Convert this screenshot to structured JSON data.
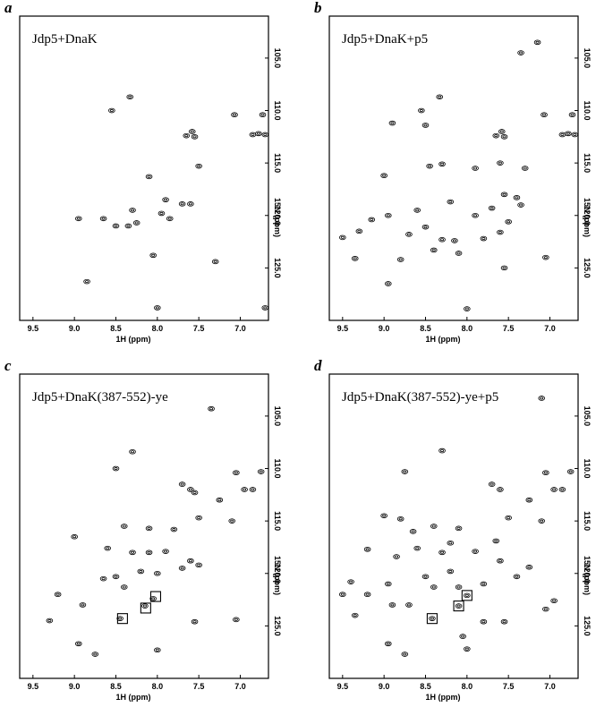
{
  "chart_data": [
    {
      "type": "scatter",
      "label": "a",
      "title": "Jdp5+DnaK",
      "x_label": "1H (ppm)",
      "y_label": "15N (ppm)",
      "xlim": [
        9.66,
        6.66
      ],
      "ylim": [
        101,
        130
      ],
      "xticks": [
        9.5,
        {
          "value": 9.0,
          "label": "9.0"
        },
        8.5,
        {
          "value": 8.0,
          "label": "8.0"
        },
        7.5,
        {
          "value": 7.0,
          "label": "7.0"
        }
      ],
      "yticks": [
        {
          "value": 105,
          "label": "105.0"
        },
        {
          "value": 110,
          "label": "110.0"
        },
        {
          "value": 115,
          "label": "115.0"
        },
        {
          "value": 120,
          "label": "120.0"
        },
        {
          "value": 125,
          "label": "125.0"
        }
      ],
      "x": [
        8.55,
        8.33,
        7.65,
        7.58,
        7.55,
        7.07,
        6.73,
        6.85,
        6.78,
        6.7,
        7.5,
        8.1,
        7.7,
        7.6,
        8.3,
        8.35,
        8.5,
        8.25,
        7.95,
        7.85,
        8.05,
        8.95,
        7.3,
        8.0,
        8.85,
        6.7,
        8.65,
        7.9
      ],
      "y": [
        110.0,
        108.7,
        112.4,
        112.0,
        112.5,
        110.4,
        110.4,
        112.3,
        112.2,
        112.3,
        115.3,
        116.3,
        118.9,
        118.9,
        119.5,
        121.0,
        121.0,
        120.7,
        119.8,
        120.3,
        123.8,
        120.3,
        124.4,
        128.8,
        126.3,
        128.8,
        120.3,
        118.5
      ]
    },
    {
      "type": "scatter",
      "label": "b",
      "title": "Jdp5+DnaK+p5",
      "x_label": "1H (ppm)",
      "y_label": "15N (ppm)",
      "xlim": [
        9.66,
        6.66
      ],
      "ylim": [
        101,
        130
      ],
      "xticks": [
        9.5,
        {
          "value": 9.0,
          "label": "9.0"
        },
        8.5,
        {
          "value": 8.0,
          "label": "8.0"
        },
        7.5,
        {
          "value": 7.0,
          "label": "7.0"
        }
      ],
      "yticks": [
        {
          "value": 105,
          "label": "105.0"
        },
        {
          "value": 110,
          "label": "110.0"
        },
        {
          "value": 115,
          "label": "115.0"
        },
        {
          "value": 120,
          "label": "120.0"
        },
        {
          "value": 125,
          "label": "125.0"
        }
      ],
      "x": [
        8.55,
        8.33,
        7.65,
        7.58,
        7.55,
        7.07,
        6.73,
        6.85,
        6.78,
        6.7,
        7.35,
        7.15,
        8.9,
        8.5,
        9.0,
        8.45,
        8.3,
        7.9,
        7.6,
        7.3,
        7.4,
        7.55,
        8.95,
        9.15,
        9.3,
        9.5,
        8.7,
        8.5,
        8.3,
        8.15,
        8.4,
        8.1,
        7.8,
        7.6,
        7.5,
        7.7,
        7.35,
        8.8,
        9.35,
        7.55,
        7.05,
        8.95,
        8.0,
        7.9,
        8.2,
        8.6
      ],
      "y": [
        110.0,
        108.7,
        112.4,
        112.0,
        112.5,
        110.4,
        110.4,
        112.3,
        112.2,
        112.3,
        104.5,
        103.5,
        111.2,
        111.4,
        116.2,
        115.3,
        115.1,
        115.5,
        115.0,
        115.5,
        118.3,
        118.0,
        120.0,
        120.4,
        121.5,
        122.1,
        121.8,
        121.1,
        122.3,
        122.4,
        123.3,
        123.6,
        122.2,
        121.6,
        120.6,
        119.3,
        119.0,
        124.2,
        124.1,
        125.0,
        124.0,
        126.5,
        128.9,
        120.0,
        118.7,
        119.5
      ]
    },
    {
      "type": "scatter",
      "label": "c",
      "title": "Jdp5+DnaK(387-552)-ye",
      "x_label": "1H (ppm)",
      "y_label": "15N (ppm)",
      "xlim": [
        9.66,
        6.66
      ],
      "ylim": [
        101,
        130
      ],
      "xticks": [
        9.5,
        {
          "value": 9.0,
          "label": "9.0"
        },
        8.5,
        {
          "value": 8.0,
          "label": "8.0"
        },
        7.5,
        {
          "value": 7.0,
          "label": "7.0"
        }
      ],
      "yticks": [
        {
          "value": 105,
          "label": "105.0"
        },
        {
          "value": 110,
          "label": "110.0"
        },
        {
          "value": 115,
          "label": "115.0"
        },
        {
          "value": 120,
          "label": "120.0"
        },
        {
          "value": 125,
          "label": "125.0"
        }
      ],
      "x": [
        7.35,
        8.3,
        8.5,
        7.7,
        7.6,
        7.55,
        7.05,
        6.75,
        6.95,
        6.85,
        7.25,
        7.1,
        7.5,
        8.4,
        8.1,
        7.8,
        9.0,
        8.6,
        8.3,
        8.1,
        7.9,
        7.6,
        7.5,
        7.7,
        8.5,
        8.0,
        8.2,
        8.4,
        8.05,
        8.15,
        8.45,
        9.2,
        8.9,
        9.3,
        7.55,
        7.05,
        8.95,
        8.0,
        8.75,
        8.65
      ],
      "y": [
        104.3,
        108.4,
        110.0,
        111.5,
        112.0,
        112.3,
        110.4,
        110.3,
        112.0,
        112.0,
        113.0,
        115.0,
        114.7,
        115.5,
        115.7,
        115.8,
        116.5,
        117.6,
        118.0,
        118.0,
        117.9,
        118.8,
        119.2,
        119.5,
        120.3,
        120.0,
        119.8,
        121.3,
        122.4,
        123.1,
        124.3,
        122.0,
        123.0,
        124.5,
        124.6,
        124.4,
        126.7,
        127.3,
        127.7,
        120.5
      ],
      "boxes": {
        "x": [
          8.02,
          8.14,
          8.42
        ],
        "y": [
          122.2,
          123.3,
          124.3
        ]
      }
    },
    {
      "type": "scatter",
      "label": "d",
      "title": "Jdp5+DnaK(387-552)-ye+p5",
      "x_label": "1H (ppm)",
      "y_label": "15N (ppm)",
      "xlim": [
        9.66,
        6.66
      ],
      "ylim": [
        101,
        130
      ],
      "xticks": [
        9.5,
        {
          "value": 9.0,
          "label": "9.0"
        },
        8.5,
        {
          "value": 8.0,
          "label": "8.0"
        },
        7.5,
        {
          "value": 7.0,
          "label": "7.0"
        }
      ],
      "yticks": [
        {
          "value": 105,
          "label": "105.0"
        },
        {
          "value": 110,
          "label": "110.0"
        },
        {
          "value": 115,
          "label": "115.0"
        },
        {
          "value": 120,
          "label": "120.0"
        },
        {
          "value": 125,
          "label": "125.0"
        }
      ],
      "x": [
        7.1,
        8.3,
        8.75,
        7.7,
        7.6,
        7.05,
        6.75,
        6.95,
        6.85,
        9.0,
        8.8,
        8.65,
        8.2,
        7.65,
        9.2,
        8.85,
        9.4,
        9.5,
        9.35,
        8.7,
        8.95,
        8.1,
        7.8,
        7.4,
        7.25,
        6.95,
        7.05,
        7.8,
        8.05,
        8.0,
        8.4,
        8.1,
        7.5,
        8.6,
        8.3,
        7.9,
        7.6,
        8.5,
        8.2,
        8.4,
        8.0,
        8.1,
        8.42,
        9.2,
        8.9,
        7.55,
        8.95,
        8.75,
        7.25,
        7.1
      ],
      "y": [
        103.3,
        108.3,
        110.3,
        111.5,
        112.0,
        110.4,
        110.3,
        112.0,
        112.0,
        114.5,
        114.8,
        116.0,
        117.1,
        116.9,
        117.7,
        118.4,
        120.8,
        122.0,
        124.0,
        123.0,
        121.0,
        121.3,
        121.0,
        120.3,
        119.4,
        122.6,
        123.4,
        124.6,
        126.0,
        127.2,
        115.5,
        115.7,
        114.7,
        117.6,
        118.0,
        117.9,
        118.8,
        120.3,
        119.8,
        121.3,
        122.1,
        123.1,
        124.3,
        122.0,
        123.0,
        124.6,
        126.7,
        127.7,
        113.0,
        115.0
      ],
      "boxes": {
        "x": [
          8.0,
          8.1,
          8.42
        ],
        "y": [
          122.1,
          123.1,
          124.3
        ]
      }
    }
  ]
}
